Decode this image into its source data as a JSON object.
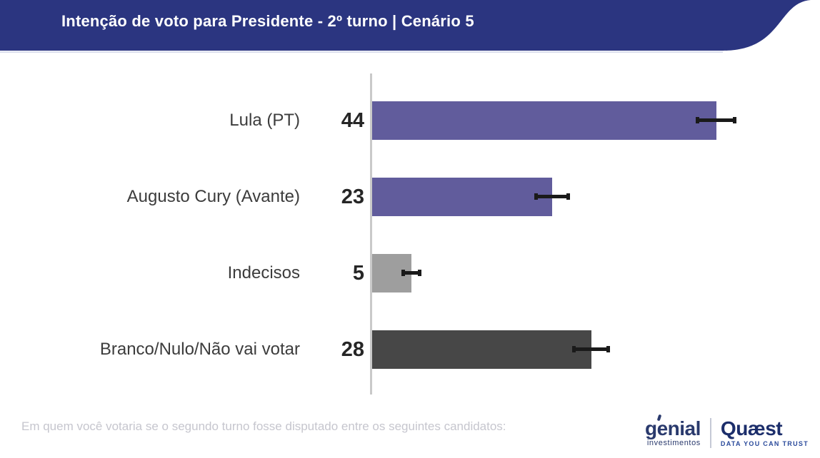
{
  "header": {
    "title": "Intenção de voto para Presidente - 2º turno | Cenário 5",
    "background_color": "#2b3580",
    "text_color": "#ffffff"
  },
  "chart_data": {
    "type": "bar",
    "orientation": "horizontal",
    "title": "Intenção de voto para Presidente - 2º turno | Cenário 5",
    "categories": [
      "Lula (PT)",
      "Augusto Cury (Avante)",
      "Indecisos",
      "Branco/Nulo/Não vai votar"
    ],
    "values": [
      44,
      23,
      5,
      28
    ],
    "error_margins": [
      2.6,
      2.3,
      1.3,
      2.4
    ],
    "bar_colors": [
      "#615c9c",
      "#615c9c",
      "#9e9e9e",
      "#474747"
    ],
    "error_bar_color": "#1a1a1a",
    "axis_line_color": "#c9c9c9",
    "xlim": [
      0,
      57
    ],
    "value_labels_shown": true,
    "grid": false,
    "legend": false
  },
  "footer": {
    "question": "Em quem você votaria se o segundo turno fosse disputado entre os seguintes candidatos:"
  },
  "branding": {
    "genial": {
      "name": "genial",
      "subtitle": "investimentos"
    },
    "quaest": {
      "name": "Quæst",
      "tagline": "DATA YOU CAN TRUST"
    }
  }
}
